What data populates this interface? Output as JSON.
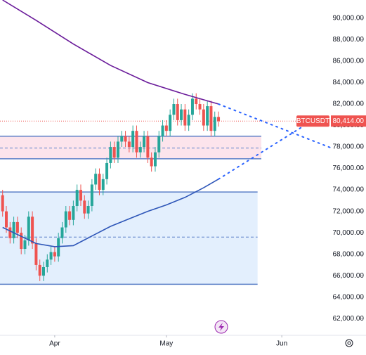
{
  "chart_data": {
    "type": "candlestick",
    "symbol": "BTCUSDT",
    "last_price": {
      "value": 80414,
      "label": "80,414.00"
    },
    "up_color": "#26a69a",
    "down_color": "#ef5350",
    "x": [
      -14,
      -13,
      -12,
      -11,
      -10,
      -9,
      -8,
      -7,
      -6,
      -5,
      -4,
      -3,
      -2,
      -1,
      0,
      1,
      2,
      3,
      4,
      5,
      6,
      7,
      8,
      9,
      10,
      11,
      12,
      13,
      14,
      15,
      16,
      17,
      18,
      19,
      20,
      21,
      22,
      23,
      24,
      25,
      26,
      27,
      28,
      29,
      30,
      31,
      32,
      33,
      34,
      35,
      36,
      37,
      38,
      39,
      40,
      41,
      42,
      43,
      44
    ],
    "open": [
      73500,
      72000,
      70500,
      69500,
      71000,
      70000,
      68500,
      69300,
      71500,
      69000,
      67000,
      66000,
      66800,
      67500,
      68200,
      67800,
      69500,
      70500,
      72000,
      71200,
      72500,
      74000,
      73000,
      71800,
      72500,
      74500,
      75500,
      74000,
      75000,
      76500,
      78000,
      77000,
      78500,
      79000,
      78500,
      78000,
      79500,
      77500,
      78000,
      79000,
      77000,
      76200,
      77500,
      79000,
      80000,
      79500,
      81000,
      82000,
      80500,
      81500,
      80000,
      81000,
      82500,
      82000,
      81500,
      80000,
      81800,
      79500,
      80800
    ],
    "high": [
      74000,
      72500,
      71000,
      71500,
      71500,
      70500,
      69800,
      72000,
      72000,
      69500,
      67500,
      67300,
      68000,
      68700,
      68700,
      70000,
      71000,
      72500,
      72500,
      73000,
      74500,
      74500,
      73500,
      73000,
      75000,
      76000,
      76000,
      75500,
      77000,
      78500,
      78500,
      79000,
      79500,
      79500,
      79000,
      80000,
      80000,
      78500,
      79500,
      79500,
      77500,
      78000,
      79500,
      80500,
      80500,
      81500,
      82500,
      82500,
      82000,
      82000,
      81500,
      83000,
      83000,
      82500,
      82000,
      82300,
      82300,
      81300,
      81300
    ],
    "low": [
      71500,
      70000,
      69000,
      69000,
      69500,
      68000,
      68000,
      68800,
      68500,
      66500,
      65500,
      65500,
      66300,
      67000,
      67300,
      67300,
      69000,
      70000,
      70700,
      70700,
      72000,
      72500,
      71300,
      71300,
      72000,
      74000,
      73500,
      73500,
      74500,
      76000,
      76500,
      76500,
      78000,
      78000,
      77500,
      77500,
      77000,
      77000,
      77500,
      76500,
      75700,
      75700,
      77000,
      78500,
      79000,
      79000,
      80500,
      80000,
      80000,
      79500,
      79500,
      80500,
      81500,
      81000,
      79500,
      79500,
      79000,
      79000,
      79900
    ],
    "close": [
      72000,
      70500,
      69500,
      71000,
      70000,
      68500,
      69300,
      71500,
      69000,
      67000,
      66000,
      66800,
      67500,
      68200,
      67800,
      69500,
      70500,
      72000,
      71200,
      72500,
      74000,
      73000,
      71800,
      72500,
      74500,
      75500,
      74000,
      75000,
      76500,
      78000,
      77000,
      78500,
      79000,
      78500,
      78000,
      79500,
      77500,
      78000,
      79000,
      77000,
      76200,
      77500,
      79000,
      80000,
      79500,
      81000,
      82000,
      80500,
      81500,
      80000,
      81000,
      82500,
      82000,
      81500,
      80000,
      81800,
      79500,
      80800,
      80414
    ],
    "series": [
      {
        "color": "#6a1b9a",
        "x": [
          -14,
          -5,
          5,
          15,
          25,
          35,
          44
        ],
        "values": [
          91700,
          89800,
          87600,
          85600,
          84000,
          82900,
          82000
        ]
      },
      {
        "color": "#2e56b8",
        "x": [
          -14,
          -5,
          0,
          5,
          10,
          15,
          20,
          25,
          30,
          35,
          40,
          44
        ],
        "values": [
          70500,
          69000,
          68700,
          68800,
          69700,
          70600,
          71300,
          72000,
          72600,
          73300,
          74200,
          75000
        ]
      }
    ],
    "trendlines": [
      {
        "color": "#2962ff",
        "x": [
          44,
          74
        ],
        "values": [
          82000,
          77950
        ]
      },
      {
        "color": "#2962ff",
        "x": [
          44,
          68
        ],
        "values": [
          75000,
          80200
        ]
      }
    ],
    "zones": [
      {
        "fill": "#fce4ec",
        "x": [
          -14.7,
          55.5
        ],
        "top": 79000,
        "bottom": 76900,
        "mid": 77900
      },
      {
        "fill": "#e3effd",
        "x": [
          -14.7,
          54.5
        ],
        "top": 73800,
        "bottom": 65200,
        "mid": 69600
      }
    ],
    "xlim": [
      -14.7,
      74
    ],
    "ylim": [
      60900,
      91700
    ],
    "xticks": [
      {
        "value": 0,
        "label": "Apr"
      },
      {
        "value": 30,
        "label": "May"
      },
      {
        "value": 61,
        "label": "Jun"
      }
    ],
    "yticks": [
      {
        "value": 62000,
        "label": "62,000.00"
      },
      {
        "value": 64000,
        "label": "64,000.00"
      },
      {
        "value": 66000,
        "label": "66,000.00"
      },
      {
        "value": 68000,
        "label": "68,000.00"
      },
      {
        "value": 70000,
        "label": "70,000.00"
      },
      {
        "value": 72000,
        "label": "72,000.00"
      },
      {
        "value": 74000,
        "label": "74,000.00"
      },
      {
        "value": 76000,
        "label": "76,000.00"
      },
      {
        "value": 78000,
        "label": "78,000.00"
      },
      {
        "value": 80000,
        "label": "80,000.00"
      },
      {
        "value": 82000,
        "label": "82,000.00"
      },
      {
        "value": 84000,
        "label": "84,000.00"
      },
      {
        "value": 86000,
        "label": "86,000.00"
      },
      {
        "value": 88000,
        "label": "88,000.00"
      },
      {
        "value": 90000,
        "label": "90,000.00"
      }
    ]
  }
}
